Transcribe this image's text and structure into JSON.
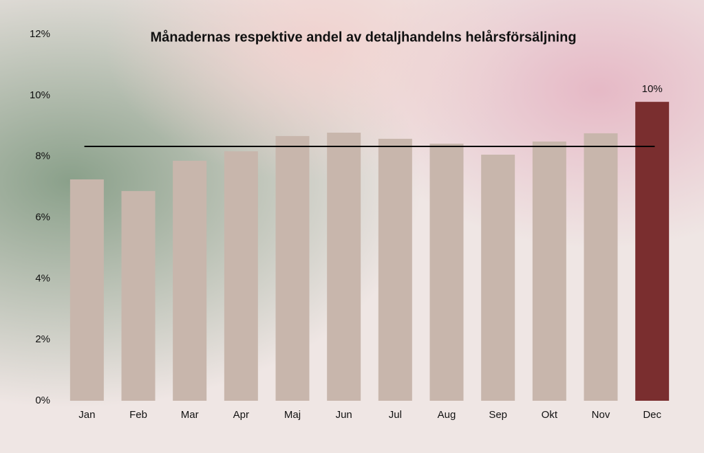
{
  "chart_data": {
    "type": "bar",
    "title": "Månadernas respektive andel av detaljhandelns helårsförsäljning",
    "categories": [
      "Jan",
      "Feb",
      "Mar",
      "Apr",
      "Maj",
      "Jun",
      "Jul",
      "Aug",
      "Sep",
      "Okt",
      "Nov",
      "Dec"
    ],
    "values": [
      7.25,
      6.87,
      7.86,
      8.17,
      8.67,
      8.78,
      8.58,
      8.42,
      8.06,
      8.49,
      8.76,
      9.79
    ],
    "value_labels": [
      null,
      null,
      null,
      null,
      null,
      null,
      null,
      null,
      null,
      null,
      null,
      "10%"
    ],
    "colors": [
      "#c8b6ac",
      "#c8b6ac",
      "#c8b6ac",
      "#c8b6ac",
      "#c8b6ac",
      "#c8b6ac",
      "#c8b6ac",
      "#c8b6ac",
      "#c8b6ac",
      "#c8b6ac",
      "#c8b6ac",
      "#7a2e2f"
    ],
    "reference_line": 8.33,
    "ylim": [
      0,
      12
    ],
    "yticks": [
      {
        "value": 0,
        "label": "0%"
      },
      {
        "value": 2,
        "label": "2%"
      },
      {
        "value": 4,
        "label": "4%"
      },
      {
        "value": 6,
        "label": "6%"
      },
      {
        "value": 8,
        "label": "8%"
      },
      {
        "value": 10,
        "label": "10%"
      },
      {
        "value": 12,
        "label": "12%"
      }
    ],
    "grid": false
  }
}
